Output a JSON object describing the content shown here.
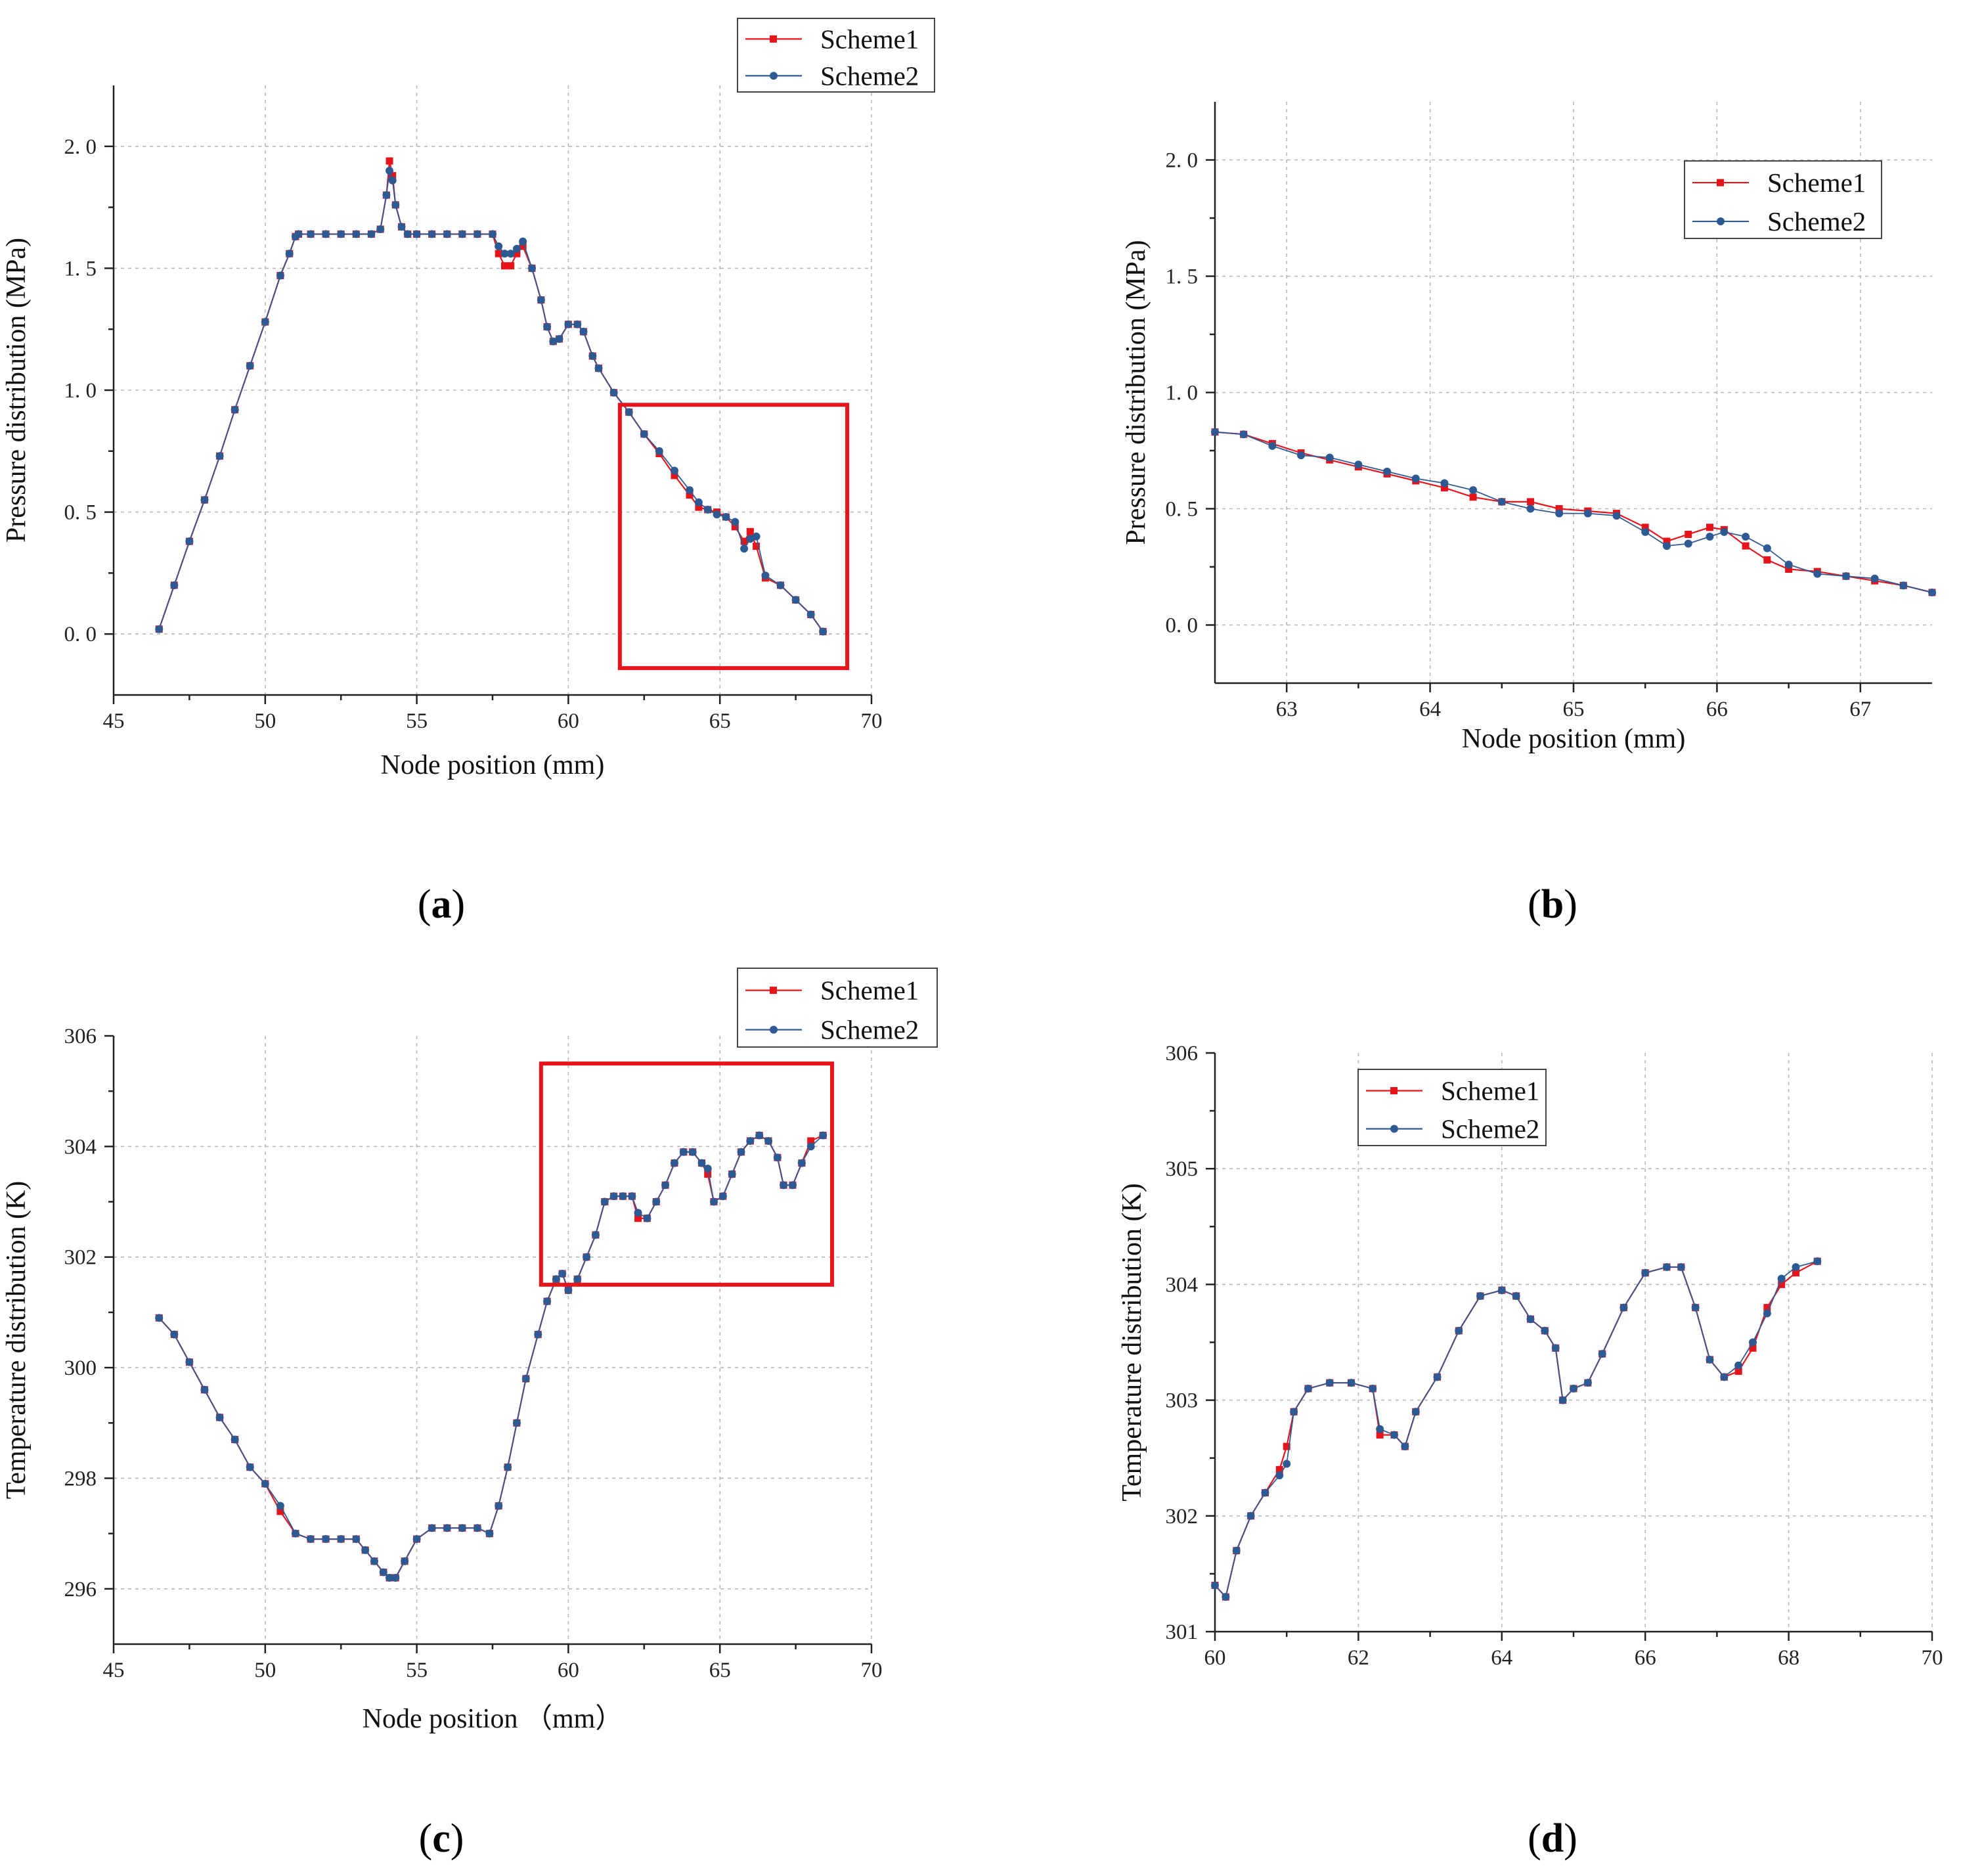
{
  "colors": {
    "scheme1": "#e8141b",
    "scheme2": "#2e5a94",
    "zoom_box": "#e8141b",
    "axis": "#222222",
    "grid": "#b8b8b8"
  },
  "panel_labels": [
    {
      "open": "(",
      "letter": "a",
      "close": ")"
    },
    {
      "open": "(",
      "letter": "b",
      "close": ")"
    },
    {
      "open": "(",
      "letter": "c",
      "close": ")"
    },
    {
      "open": "(",
      "letter": "d",
      "close": ")"
    }
  ],
  "chart_data": [
    {
      "id": "a",
      "type": "line",
      "xlabel": "Node position (mm)",
      "ylabel": "Pressure distribution (MPa)",
      "xlim": [
        45,
        70
      ],
      "ylim": [
        -0.25,
        2.25
      ],
      "xticks": [
        45,
        50,
        55,
        60,
        65,
        70
      ],
      "xtick_labels": [
        "45",
        "50",
        "55",
        "60",
        "65",
        "70"
      ],
      "yticks": [
        0.0,
        0.5,
        1.0,
        1.5,
        2.0
      ],
      "ytick_labels": [
        "0. 0",
        "0. 5",
        "1. 0",
        "1. 5",
        "2. 0"
      ],
      "legend": {
        "entries": [
          "Scheme1",
          "Scheme2"
        ],
        "position": "top-right, outside axes"
      },
      "zoom_region": {
        "x": [
          61.7,
          69.2
        ],
        "y": [
          -0.14,
          0.94
        ]
      },
      "series": [
        {
          "name": "Scheme1",
          "x": [
            46.5,
            47,
            47.5,
            48,
            48.5,
            49,
            49.5,
            50,
            50.5,
            50.8,
            51,
            51.1,
            51.5,
            52,
            52.5,
            53,
            53.5,
            53.8,
            54,
            54.1,
            54.2,
            54.3,
            54.5,
            54.7,
            55,
            55.5,
            56,
            56.5,
            57,
            57.5,
            57.7,
            57.9,
            58.1,
            58.3,
            58.5,
            58.8,
            59.1,
            59.3,
            59.5,
            59.7,
            60,
            60.3,
            60.5,
            60.8,
            61,
            61.5,
            62,
            62.5,
            63,
            63.5,
            64,
            64.3,
            64.6,
            64.9,
            65.2,
            65.5,
            65.8,
            66,
            66.2,
            66.5,
            67,
            67.5,
            68,
            68.4
          ],
          "y": [
            0.02,
            0.2,
            0.38,
            0.55,
            0.73,
            0.92,
            1.1,
            1.28,
            1.47,
            1.56,
            1.63,
            1.64,
            1.64,
            1.64,
            1.64,
            1.64,
            1.64,
            1.66,
            1.8,
            1.94,
            1.88,
            1.76,
            1.67,
            1.64,
            1.64,
            1.64,
            1.64,
            1.64,
            1.64,
            1.64,
            1.56,
            1.51,
            1.51,
            1.56,
            1.59,
            1.5,
            1.37,
            1.26,
            1.2,
            1.21,
            1.27,
            1.27,
            1.24,
            1.14,
            1.09,
            0.99,
            0.91,
            0.82,
            0.74,
            0.65,
            0.57,
            0.52,
            0.51,
            0.5,
            0.48,
            0.44,
            0.38,
            0.42,
            0.36,
            0.23,
            0.2,
            0.14,
            0.08,
            0.01
          ]
        },
        {
          "name": "Scheme2",
          "x": [
            46.5,
            47,
            47.5,
            48,
            48.5,
            49,
            49.5,
            50,
            50.5,
            50.8,
            51,
            51.1,
            51.5,
            52,
            52.5,
            53,
            53.5,
            53.8,
            54,
            54.1,
            54.2,
            54.3,
            54.5,
            54.7,
            55,
            55.5,
            56,
            56.5,
            57,
            57.5,
            57.7,
            57.9,
            58.1,
            58.3,
            58.5,
            58.8,
            59.1,
            59.3,
            59.5,
            59.7,
            60,
            60.3,
            60.5,
            60.8,
            61,
            61.5,
            62,
            62.5,
            63,
            63.5,
            64,
            64.3,
            64.6,
            64.9,
            65.2,
            65.5,
            65.8,
            66,
            66.2,
            66.5,
            67,
            67.5,
            68,
            68.4
          ],
          "y": [
            0.02,
            0.2,
            0.38,
            0.55,
            0.73,
            0.92,
            1.1,
            1.28,
            1.47,
            1.56,
            1.63,
            1.64,
            1.64,
            1.64,
            1.64,
            1.64,
            1.64,
            1.66,
            1.8,
            1.9,
            1.86,
            1.76,
            1.67,
            1.64,
            1.64,
            1.64,
            1.64,
            1.64,
            1.64,
            1.64,
            1.59,
            1.56,
            1.56,
            1.58,
            1.61,
            1.5,
            1.37,
            1.26,
            1.2,
            1.21,
            1.27,
            1.27,
            1.24,
            1.14,
            1.09,
            0.99,
            0.91,
            0.82,
            0.75,
            0.67,
            0.59,
            0.54,
            0.51,
            0.49,
            0.48,
            0.46,
            0.35,
            0.39,
            0.4,
            0.24,
            0.2,
            0.14,
            0.08,
            0.01
          ]
        }
      ]
    },
    {
      "id": "b",
      "type": "line",
      "xlabel": "Node position (mm)",
      "ylabel": "Pressure distribution (MPa)",
      "xlim": [
        62.5,
        67.5
      ],
      "ylim": [
        -0.25,
        2.25
      ],
      "xticks": [
        63,
        64,
        65,
        66,
        67
      ],
      "xtick_labels": [
        "63",
        "64",
        "65",
        "66",
        "67"
      ],
      "yticks": [
        0.0,
        0.5,
        1.0,
        1.5,
        2.0
      ],
      "ytick_labels": [
        "0. 0",
        "0. 5",
        "1. 0",
        "1. 5",
        "2. 0"
      ],
      "legend": {
        "entries": [
          "Scheme1",
          "Scheme2"
        ],
        "position": "top-right, inside axes"
      },
      "series": [
        {
          "name": "Scheme1",
          "x": [
            62.5,
            62.7,
            62.9,
            63.1,
            63.3,
            63.5,
            63.7,
            63.9,
            64.1,
            64.3,
            64.5,
            64.7,
            64.9,
            65.1,
            65.3,
            65.5,
            65.65,
            65.8,
            65.95,
            66.05,
            66.2,
            66.35,
            66.5,
            66.7,
            66.9,
            67.1,
            67.3,
            67.5
          ],
          "y": [
            0.83,
            0.82,
            0.78,
            0.74,
            0.71,
            0.68,
            0.65,
            0.62,
            0.59,
            0.55,
            0.53,
            0.53,
            0.5,
            0.49,
            0.48,
            0.42,
            0.36,
            0.39,
            0.42,
            0.41,
            0.34,
            0.28,
            0.24,
            0.23,
            0.21,
            0.19,
            0.17,
            0.14
          ]
        },
        {
          "name": "Scheme2",
          "x": [
            62.5,
            62.7,
            62.9,
            63.1,
            63.3,
            63.5,
            63.7,
            63.9,
            64.1,
            64.3,
            64.5,
            64.7,
            64.9,
            65.1,
            65.3,
            65.5,
            65.65,
            65.8,
            65.95,
            66.05,
            66.2,
            66.35,
            66.5,
            66.7,
            66.9,
            67.1,
            67.3,
            67.5
          ],
          "y": [
            0.83,
            0.82,
            0.77,
            0.73,
            0.72,
            0.69,
            0.66,
            0.63,
            0.61,
            0.58,
            0.53,
            0.5,
            0.48,
            0.48,
            0.47,
            0.4,
            0.34,
            0.35,
            0.38,
            0.4,
            0.38,
            0.33,
            0.26,
            0.22,
            0.21,
            0.2,
            0.17,
            0.14
          ]
        }
      ]
    },
    {
      "id": "c",
      "type": "line",
      "xlabel": "Node position （mm）",
      "ylabel": "Temperature distribution (K)",
      "xlim": [
        45,
        70
      ],
      "ylim": [
        295,
        306
      ],
      "xticks": [
        45,
        50,
        55,
        60,
        65,
        70
      ],
      "xtick_labels": [
        "45",
        "50",
        "55",
        "60",
        "65",
        "70"
      ],
      "yticks": [
        296,
        298,
        300,
        302,
        304,
        306
      ],
      "ytick_labels": [
        "296",
        "298",
        "300",
        "302",
        "304",
        "306"
      ],
      "legend": {
        "entries": [
          "Scheme1",
          "Scheme2"
        ],
        "position": "top-right, outside axes"
      },
      "zoom_region": {
        "x": [
          59.1,
          68.7
        ],
        "y": [
          301.5,
          305.5
        ]
      },
      "series": [
        {
          "name": "Scheme1",
          "x": [
            46.5,
            47,
            47.5,
            48,
            48.5,
            49,
            49.5,
            50,
            50.5,
            51,
            51.5,
            52,
            52.5,
            53,
            53.3,
            53.6,
            53.9,
            54.1,
            54.3,
            54.6,
            55,
            55.5,
            56,
            56.5,
            57,
            57.4,
            57.7,
            58,
            58.3,
            58.6,
            59,
            59.3,
            59.6,
            59.8,
            60,
            60.3,
            60.6,
            60.9,
            61.2,
            61.5,
            61.8,
            62.1,
            62.3,
            62.6,
            62.9,
            63.2,
            63.5,
            63.8,
            64.1,
            64.4,
            64.6,
            64.8,
            65.1,
            65.4,
            65.7,
            66,
            66.3,
            66.6,
            66.9,
            67.1,
            67.4,
            67.7,
            68,
            68.4
          ],
          "y": [
            300.9,
            300.6,
            300.1,
            299.6,
            299.1,
            298.7,
            298.2,
            297.9,
            297.4,
            297,
            296.9,
            296.9,
            296.9,
            296.9,
            296.7,
            296.5,
            296.3,
            296.2,
            296.2,
            296.5,
            296.9,
            297.1,
            297.1,
            297.1,
            297.1,
            297.0,
            297.5,
            298.2,
            299.0,
            299.8,
            300.6,
            301.2,
            301.6,
            301.7,
            301.4,
            301.6,
            302.0,
            302.4,
            303.0,
            303.1,
            303.1,
            303.1,
            302.7,
            302.7,
            303.0,
            303.3,
            303.7,
            303.9,
            303.9,
            303.7,
            303.5,
            303.0,
            303.1,
            303.5,
            303.9,
            304.1,
            304.2,
            304.1,
            303.8,
            303.3,
            303.3,
            303.7,
            304.1,
            304.2
          ]
        },
        {
          "name": "Scheme2",
          "x": [
            46.5,
            47,
            47.5,
            48,
            48.5,
            49,
            49.5,
            50,
            50.5,
            51,
            51.5,
            52,
            52.5,
            53,
            53.3,
            53.6,
            53.9,
            54.1,
            54.3,
            54.6,
            55,
            55.5,
            56,
            56.5,
            57,
            57.4,
            57.7,
            58,
            58.3,
            58.6,
            59,
            59.3,
            59.6,
            59.8,
            60,
            60.3,
            60.6,
            60.9,
            61.2,
            61.5,
            61.8,
            62.1,
            62.3,
            62.6,
            62.9,
            63.2,
            63.5,
            63.8,
            64.1,
            64.4,
            64.6,
            64.8,
            65.1,
            65.4,
            65.7,
            66,
            66.3,
            66.6,
            66.9,
            67.1,
            67.4,
            67.7,
            68,
            68.4
          ],
          "y": [
            300.9,
            300.6,
            300.1,
            299.6,
            299.1,
            298.7,
            298.2,
            297.9,
            297.5,
            297,
            296.9,
            296.9,
            296.9,
            296.9,
            296.7,
            296.5,
            296.3,
            296.2,
            296.2,
            296.5,
            296.9,
            297.1,
            297.1,
            297.1,
            297.1,
            297.0,
            297.5,
            298.2,
            299.0,
            299.8,
            300.6,
            301.2,
            301.6,
            301.7,
            301.4,
            301.6,
            302.0,
            302.4,
            303.0,
            303.1,
            303.1,
            303.1,
            302.8,
            302.7,
            303.0,
            303.3,
            303.7,
            303.9,
            303.9,
            303.7,
            303.6,
            303.0,
            303.1,
            303.5,
            303.9,
            304.1,
            304.2,
            304.1,
            303.8,
            303.3,
            303.3,
            303.7,
            304.0,
            304.2
          ]
        }
      ]
    },
    {
      "id": "d",
      "type": "line",
      "xlabel": "",
      "ylabel": "Temperature distribution (K)",
      "xlim": [
        60,
        70
      ],
      "ylim": [
        301,
        306
      ],
      "xticks": [
        60,
        62,
        64,
        66,
        68,
        70
      ],
      "xtick_labels": [
        "60",
        "62",
        "64",
        "66",
        "68",
        "70"
      ],
      "yticks": [
        301,
        302,
        303,
        304,
        305,
        306
      ],
      "ytick_labels": [
        "301",
        "302",
        "303",
        "304",
        "305",
        "306"
      ],
      "legend": {
        "entries": [
          "Scheme1",
          "Scheme2"
        ],
        "position": "top-left, inside axes"
      },
      "series": [
        {
          "name": "Scheme1",
          "x": [
            60,
            60.15,
            60.3,
            60.5,
            60.7,
            60.9,
            61,
            61.1,
            61.3,
            61.6,
            61.9,
            62.2,
            62.3,
            62.5,
            62.65,
            62.8,
            63.1,
            63.4,
            63.7,
            64,
            64.2,
            64.4,
            64.6,
            64.75,
            64.85,
            65,
            65.2,
            65.4,
            65.7,
            66,
            66.3,
            66.5,
            66.7,
            66.9,
            67.1,
            67.3,
            67.5,
            67.7,
            67.9,
            68.1,
            68.4
          ],
          "y": [
            301.4,
            301.3,
            301.7,
            302.0,
            302.2,
            302.4,
            302.6,
            302.9,
            303.1,
            303.15,
            303.15,
            303.1,
            302.7,
            302.7,
            302.6,
            302.9,
            303.2,
            303.6,
            303.9,
            303.95,
            303.9,
            303.7,
            303.6,
            303.45,
            303.0,
            303.1,
            303.15,
            303.4,
            303.8,
            304.1,
            304.15,
            304.15,
            303.8,
            303.35,
            303.2,
            303.25,
            303.45,
            303.8,
            304.0,
            304.1,
            304.2
          ]
        },
        {
          "name": "Scheme2",
          "x": [
            60,
            60.15,
            60.3,
            60.5,
            60.7,
            60.9,
            61,
            61.1,
            61.3,
            61.6,
            61.9,
            62.2,
            62.3,
            62.5,
            62.65,
            62.8,
            63.1,
            63.4,
            63.7,
            64,
            64.2,
            64.4,
            64.6,
            64.75,
            64.85,
            65,
            65.2,
            65.4,
            65.7,
            66,
            66.3,
            66.5,
            66.7,
            66.9,
            67.1,
            67.3,
            67.5,
            67.7,
            67.9,
            68.1,
            68.4
          ],
          "y": [
            301.4,
            301.3,
            301.7,
            302.0,
            302.2,
            302.35,
            302.45,
            302.9,
            303.1,
            303.15,
            303.15,
            303.1,
            302.75,
            302.7,
            302.6,
            302.9,
            303.2,
            303.6,
            303.9,
            303.95,
            303.9,
            303.7,
            303.6,
            303.45,
            303.0,
            303.1,
            303.15,
            303.4,
            303.8,
            304.1,
            304.15,
            304.15,
            303.8,
            303.35,
            303.2,
            303.3,
            303.5,
            303.75,
            304.05,
            304.15,
            304.2
          ]
        }
      ]
    }
  ]
}
